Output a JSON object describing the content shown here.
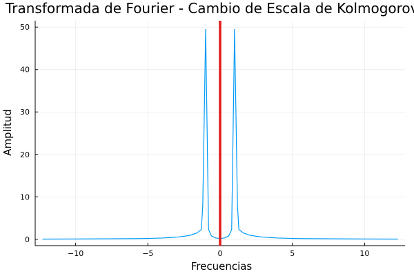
{
  "chart_data": {
    "type": "line",
    "title": "Transformada de Fourier - Cambio de Escala de Kolmogorov",
    "xlabel": "Frecuencias",
    "ylabel": "Amplitud",
    "xlim": [
      -12.8,
      12.8
    ],
    "ylim": [
      -1.5,
      51.5
    ],
    "xticks": [
      -10,
      -5,
      0,
      5,
      10
    ],
    "yticks": [
      0,
      10,
      20,
      30,
      40,
      50
    ],
    "grid": true,
    "legend": "none",
    "series": [
      {
        "color": "#009af9",
        "x": [
          -12.3,
          -10,
          -8,
          -6,
          -5,
          -4,
          -3,
          -2.5,
          -2,
          -1.6,
          -1.3,
          -1.2,
          -1.0,
          -0.8,
          -0.6,
          -0.3,
          0,
          0.3,
          0.6,
          0.8,
          1.0,
          1.2,
          1.3,
          1.6,
          2,
          2.5,
          3,
          4,
          5,
          6,
          8,
          10,
          12.3
        ],
        "values": [
          0.05,
          0.07,
          0.1,
          0.15,
          0.2,
          0.3,
          0.5,
          0.7,
          1.0,
          1.5,
          2.3,
          8,
          49.5,
          2.3,
          0.8,
          0.3,
          0.2,
          0.3,
          0.8,
          2.3,
          49.5,
          8,
          2.3,
          1.5,
          1.0,
          0.7,
          0.5,
          0.3,
          0.2,
          0.15,
          0.1,
          0.07,
          0.05
        ]
      }
    ],
    "vline": {
      "x": 0,
      "color": "#e41a1c"
    }
  }
}
